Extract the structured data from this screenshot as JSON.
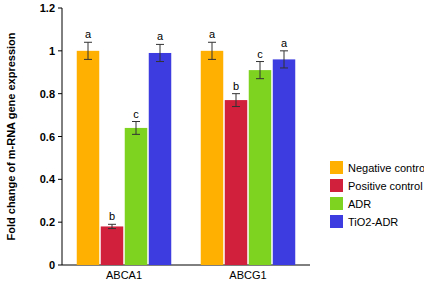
{
  "chart_data": {
    "type": "bar",
    "y_label": "Fold change of m-RNA gene expression",
    "categories": [
      "ABCA1",
      "ABCG1"
    ],
    "series": [
      {
        "name": "Negative control",
        "color": "#ffb000",
        "values": [
          1.0,
          1.0
        ],
        "errors": [
          0.04,
          0.04
        ],
        "letters": [
          "a",
          "a"
        ]
      },
      {
        "name": "Positive control",
        "color": "#d0203c",
        "values": [
          0.18,
          0.77
        ],
        "errors": [
          0.01,
          0.03
        ],
        "letters": [
          "b",
          "b"
        ]
      },
      {
        "name": "ADR",
        "color": "#7ed321",
        "values": [
          0.64,
          0.91
        ],
        "errors": [
          0.03,
          0.04
        ],
        "letters": [
          "c",
          "c"
        ]
      },
      {
        "name": "TiO2-ADR",
        "color": "#3c3ce0",
        "values": [
          0.99,
          0.96
        ],
        "errors": [
          0.04,
          0.04
        ],
        "letters": [
          "a",
          "a"
        ]
      }
    ],
    "ylim": [
      0,
      1.2
    ],
    "yticks": [
      0,
      0.2,
      0.4,
      0.6,
      0.8,
      1,
      1.2
    ],
    "legend": "right"
  }
}
